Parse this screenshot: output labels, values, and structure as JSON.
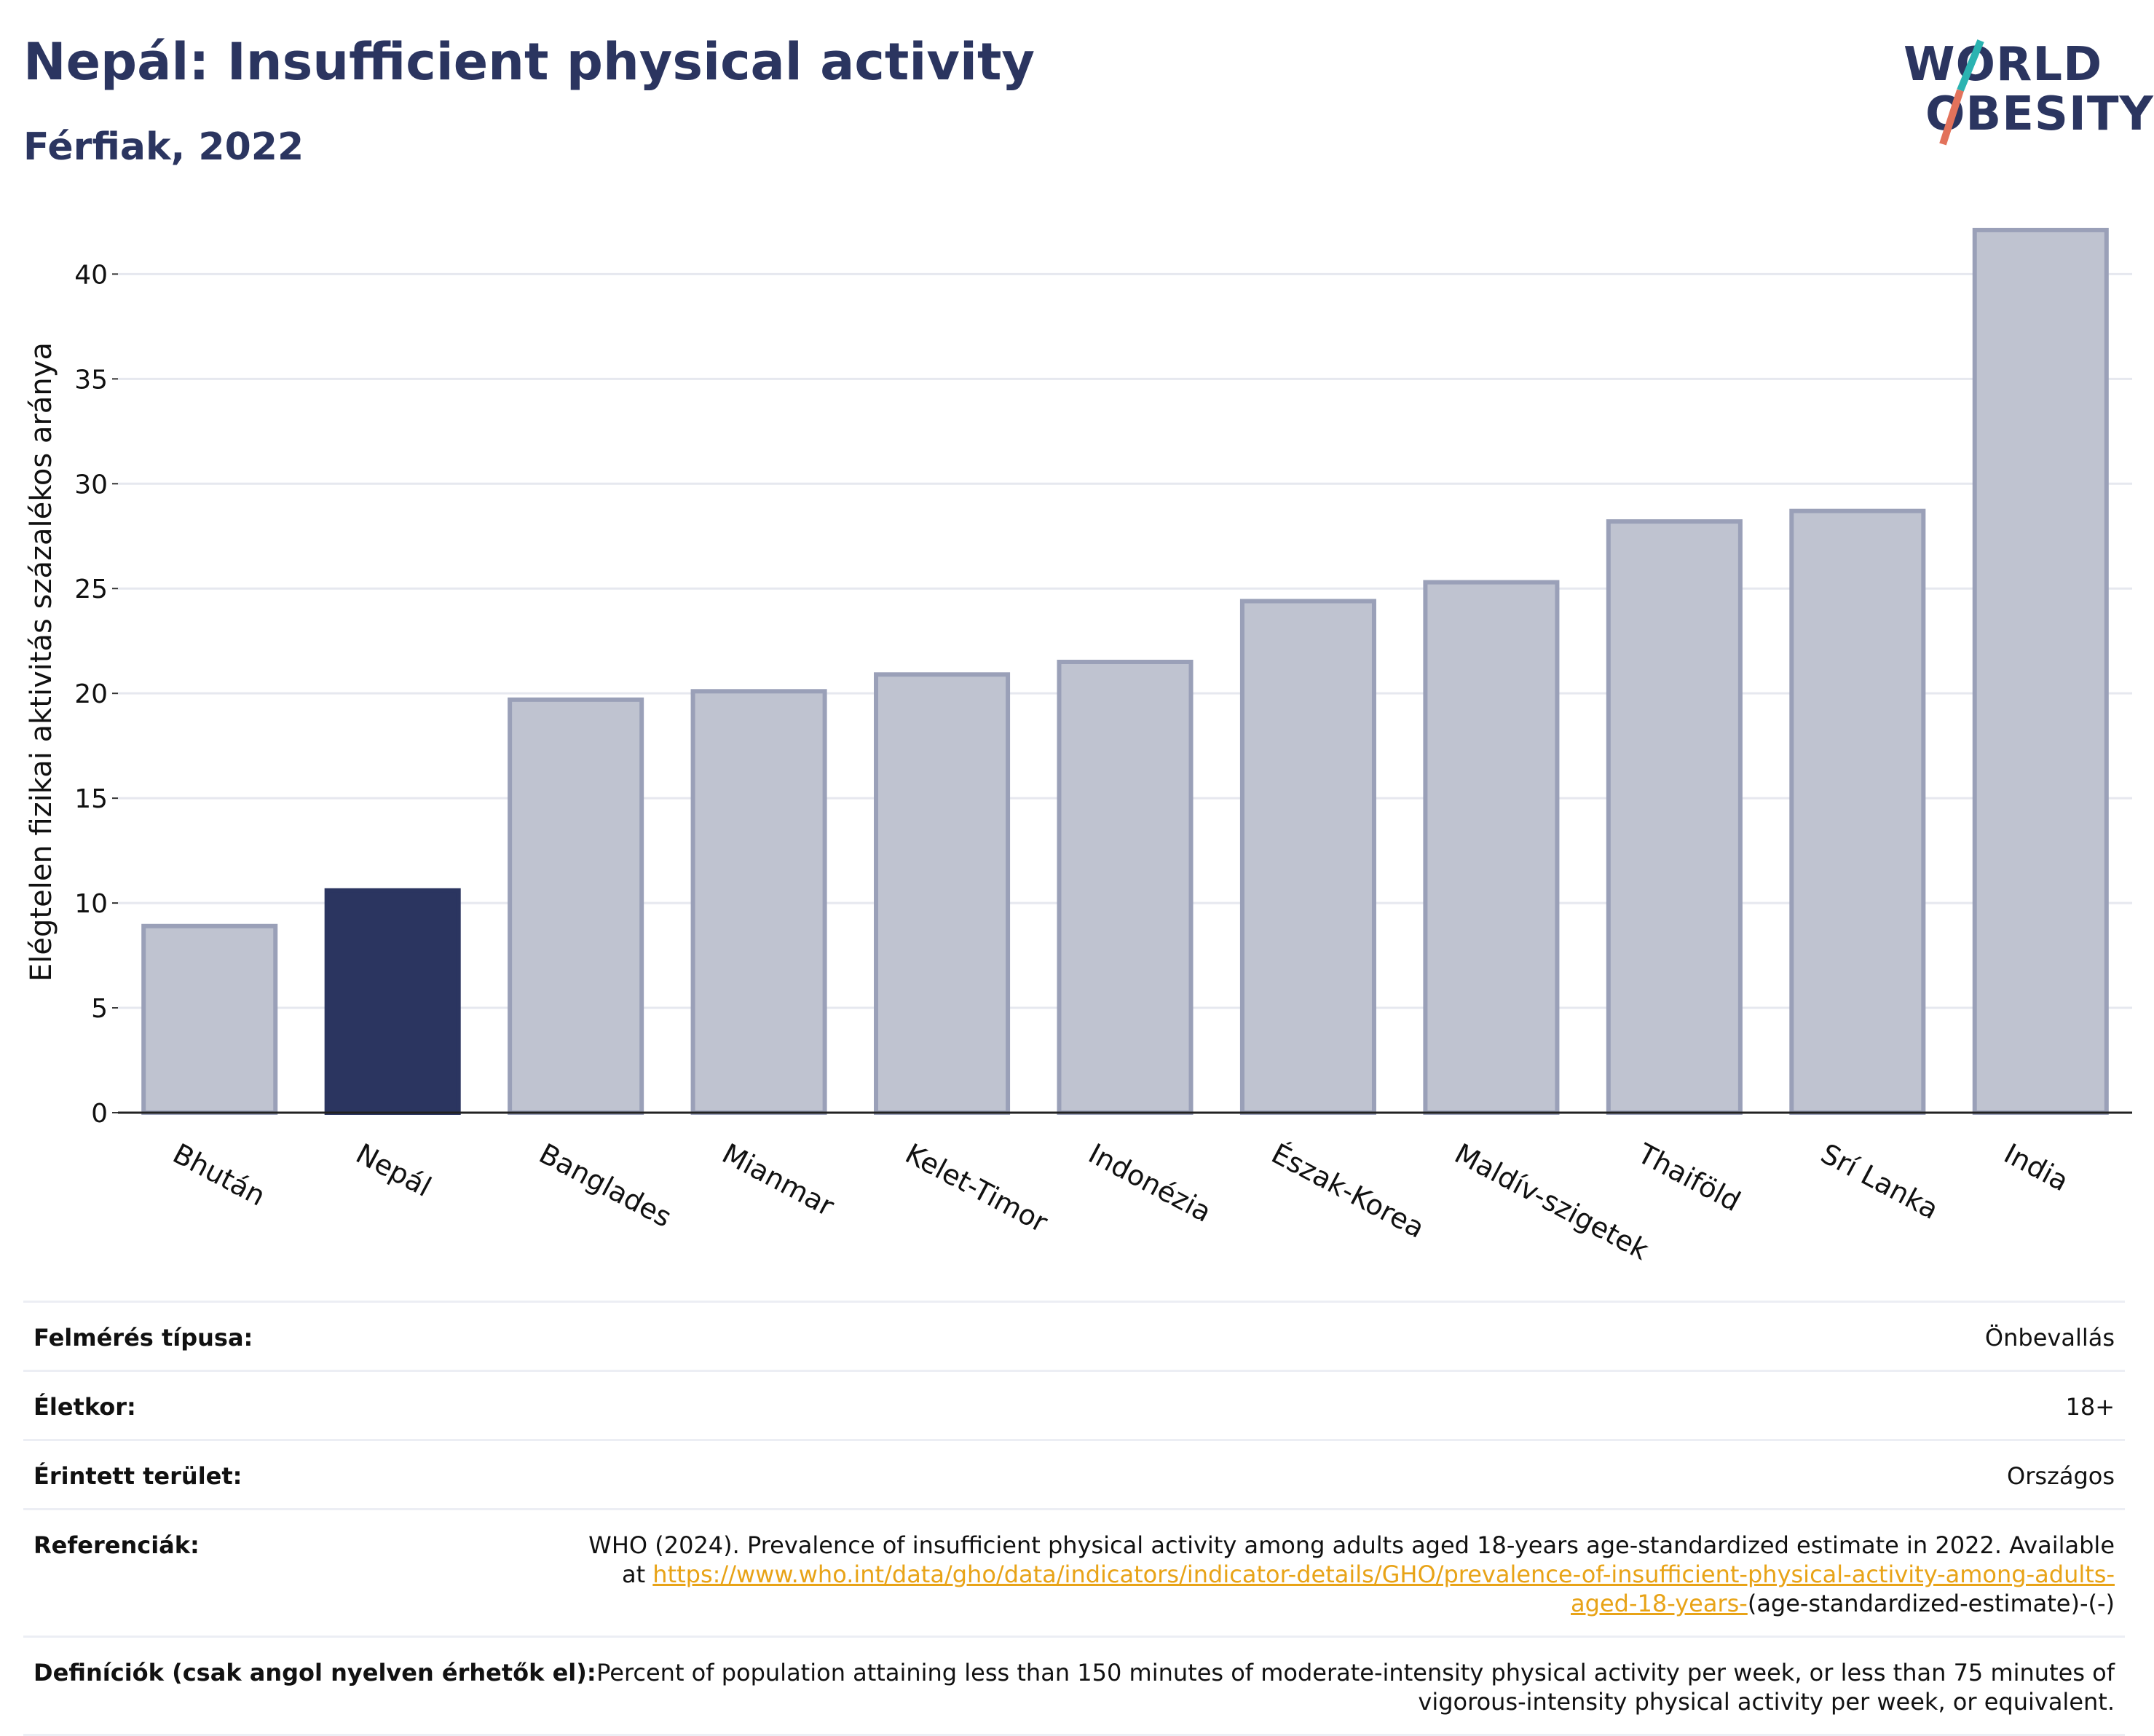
{
  "title": "Nepál: Insufficient physical activity",
  "subtitle": "Férfiak, 2022",
  "logo": {
    "line1": "WORLD",
    "line2": "OBESITY",
    "accent_colors": [
      "#2bb3b1",
      "#e2725b"
    ]
  },
  "chart_data": {
    "type": "bar",
    "categories": [
      "Bhután",
      "Nepál",
      "Banglades",
      "Mianmar",
      "Kelet-Timor",
      "Indonézia",
      "Észak-Korea",
      "Maldív-szigetek",
      "Thaiföld",
      "Srí Lanka",
      "India"
    ],
    "values": [
      8.9,
      10.6,
      19.7,
      20.1,
      20.9,
      21.5,
      24.4,
      25.3,
      28.2,
      28.7,
      42.1
    ],
    "highlight_index": 1,
    "ylabel": "Elégtelen fizikai aktivitás százalékos aránya",
    "xlabel": "",
    "ylim": [
      0,
      43
    ],
    "yticks": [
      0,
      5,
      10,
      15,
      20,
      25,
      30,
      35,
      40
    ],
    "grid": true,
    "colors": {
      "bar": "#bfc3d0",
      "bar_edge": "#9aa0b8",
      "highlight": "#2b3560"
    }
  },
  "meta": [
    {
      "label": "Felmérés típusa:",
      "value": "Önbevallás"
    },
    {
      "label": "Életkor:",
      "value": "18+"
    },
    {
      "label": "Érintett terület:",
      "value": "Országos"
    },
    {
      "label": "Referenciák:",
      "value": "WHO (2024). Prevalence of insufficient physical activity among adults aged 18-years age-standardized estimate in 2022. Available at",
      "link": "https://www.who.int/data/gho/data/indicators/indicator-details/GHO/prevalence-of-insufficient-physical-activity-among-adults-aged-18-years-",
      "after": "(age-standardized-estimate)-(-)"
    },
    {
      "label": "Definíciók (csak angol nyelven érhetők el):",
      "value": "Percent of population attaining less than 150 minutes of moderate-intensity physical activity per week, or less than 75 minutes of vigorous-intensity physical activity per week, or equivalent."
    }
  ]
}
